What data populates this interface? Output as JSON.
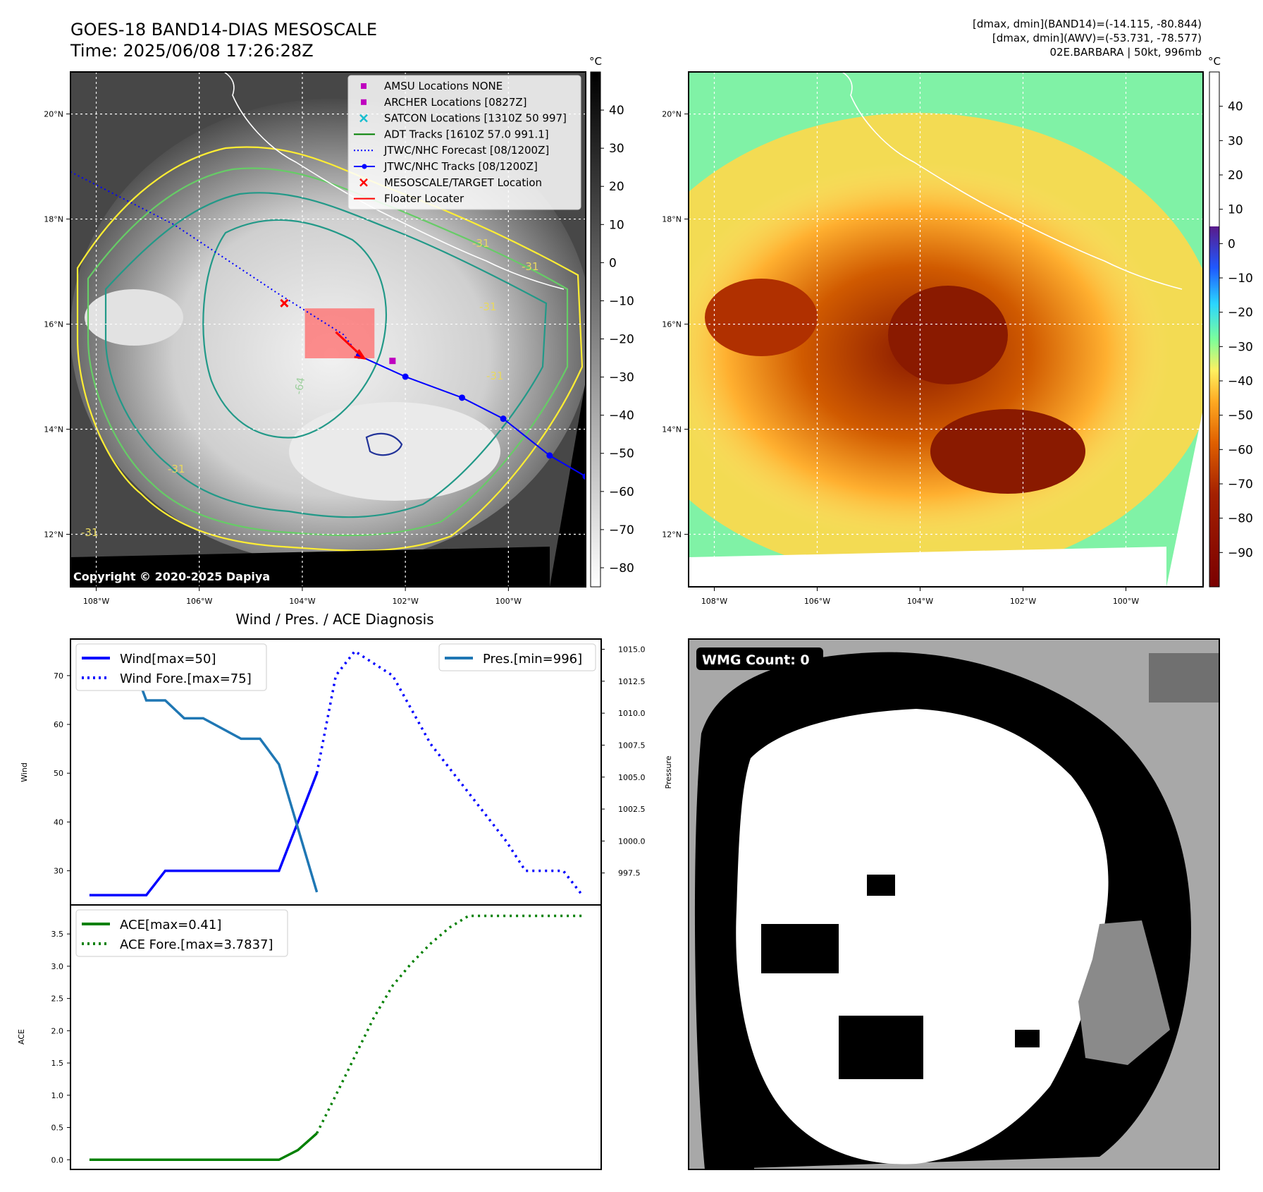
{
  "header": {
    "title_line1": "GOES-18 BAND14-DIAS MESOSCALE",
    "title_line2": "Time: 2025/06/08 17:26:28Z",
    "stats_line1": "[dmax, dmin](BAND14)=(-14.115, -80.844)",
    "stats_line2": "[dmax, dmin](AWV)=(-53.731, -78.577)",
    "stats_line3": "02E.BARBARA | 50kt, 996mb"
  },
  "maps": {
    "lat_labels": [
      "20°N",
      "18°N",
      "16°N",
      "14°N",
      "12°N"
    ],
    "lat_values": [
      20,
      18,
      16,
      14,
      12
    ],
    "lon_labels": [
      "108°W",
      "106°W",
      "104°W",
      "102°W",
      "100°W"
    ],
    "lon_values": [
      -108,
      -106,
      -104,
      -102,
      -100
    ],
    "extent": {
      "lon_min": -108.5,
      "lon_max": -98.5,
      "lat_min": 11.0,
      "lat_max": 20.8
    },
    "copyright": "Copyright © 2020-2025 Dapiya",
    "left_colorbar": {
      "unit": "°C",
      "ticks": [
        "40",
        "30",
        "20",
        "10",
        "0",
        "−10",
        "−20",
        "−30",
        "−40",
        "−50",
        "−60",
        "−70",
        "−80"
      ],
      "values": [
        40,
        30,
        20,
        10,
        0,
        -10,
        -20,
        -30,
        -40,
        -50,
        -60,
        -70,
        -80
      ],
      "range": [
        -85,
        50
      ]
    },
    "right_colorbar": {
      "unit": "°C",
      "ticks": [
        "40",
        "30",
        "20",
        "10",
        "0",
        "−10",
        "−20",
        "−30",
        "−40",
        "−50",
        "−60",
        "−70",
        "−80",
        "−90"
      ],
      "values": [
        40,
        30,
        20,
        10,
        0,
        -10,
        -20,
        -30,
        -40,
        -50,
        -60,
        -70,
        -80,
        -90
      ],
      "range": [
        -100,
        50
      ]
    },
    "contour_labels": [
      "-64",
      "-31",
      "-31",
      "-31",
      "-31",
      "-31",
      "-31"
    ],
    "legend": [
      {
        "label": "AMSU Locations NONE",
        "marker": "square",
        "color": "#bf00bf"
      },
      {
        "label": "ARCHER Locations [0827Z]",
        "marker": "square",
        "color": "#bf00bf"
      },
      {
        "label": "SATCON Locations [1310Z 50 997]",
        "marker": "x",
        "color": "#17becf"
      },
      {
        "label": "ADT Tracks [1610Z 57.0 991.1]",
        "marker": "line",
        "color": "#008000"
      },
      {
        "label": "JTWC/NHC Forecast [08/1200Z]",
        "marker": "dotted",
        "color": "#0000ff"
      },
      {
        "label": "JTWC/NHC Tracks [08/1200Z]",
        "marker": "line-dot",
        "color": "#0000ff"
      },
      {
        "label": "MESOSCALE/TARGET Location",
        "marker": "x",
        "color": "#ff0000"
      },
      {
        "label": "Floater Locater",
        "marker": "line",
        "color": "#ff0000"
      }
    ],
    "track_points": [
      {
        "lon": -102.9,
        "lat": 15.4
      },
      {
        "lon": -102.0,
        "lat": 15.0
      },
      {
        "lon": -100.9,
        "lat": 14.6
      },
      {
        "lon": -100.1,
        "lat": 14.2
      },
      {
        "lon": -99.2,
        "lat": 13.5
      },
      {
        "lon": -98.5,
        "lat": 13.1
      }
    ],
    "forecast_points": [
      {
        "lon": -108.5,
        "lat": 18.9
      },
      {
        "lon": -106.5,
        "lat": 17.9
      },
      {
        "lon": -104.5,
        "lat": 16.6
      },
      {
        "lon": -103.2,
        "lat": 15.8
      },
      {
        "lon": -102.9,
        "lat": 15.4
      }
    ],
    "mesoscale_target": {
      "lon": -104.35,
      "lat": 16.4
    },
    "archer_point": {
      "lon": -102.25,
      "lat": 15.3
    },
    "floater_box": {
      "lon_min": -103.95,
      "lon_max": -102.6,
      "lat_min": 15.35,
      "lat_max": 16.3
    }
  },
  "wmg": {
    "label": "WMG Count: 0"
  },
  "chart_data": [
    {
      "type": "line",
      "title": "Wind / Pres. / ACE Diagnosis",
      "ylabel": "Wind",
      "ylim": [
        23,
        77.5
      ],
      "yticks": [
        "70",
        "60",
        "50",
        "40",
        "30"
      ],
      "ytick_values": [
        70,
        60,
        50,
        40,
        30
      ],
      "y2label": "Pressure",
      "y2lim": [
        995.0,
        1015.8
      ],
      "y2ticks": [
        "1015.0",
        "1012.5",
        "1010.0",
        "1007.5",
        "1005.0",
        "1002.5",
        "1000.0",
        "997.5"
      ],
      "y2tick_values": [
        1015.0,
        1012.5,
        1010.0,
        1007.5,
        1005.0,
        1002.5,
        1000.0,
        997.5
      ],
      "xlim": [
        -1,
        27
      ],
      "series": [
        {
          "name": "Wind[max=50]",
          "style": "solid",
          "color": "#0000ff",
          "axis": "left",
          "x": [
            0,
            1,
            2,
            3,
            4,
            5,
            6,
            7,
            8,
            9,
            10,
            11,
            12
          ],
          "y": [
            25,
            25,
            25,
            25,
            30,
            30,
            30,
            30,
            30,
            30,
            30,
            40,
            50
          ]
        },
        {
          "name": "Wind Fore.[max=75]",
          "style": "dotted",
          "color": "#0000ff",
          "axis": "left",
          "x": [
            12,
            13,
            14,
            15,
            16,
            17,
            18,
            19,
            20,
            21,
            22,
            23,
            24,
            25,
            26
          ],
          "y": [
            50,
            70,
            75,
            72.5,
            70,
            63,
            56,
            51,
            46,
            41,
            36,
            30,
            30,
            30,
            25
          ]
        },
        {
          "name": "Pres.[min=996]",
          "style": "solid",
          "color": "#1f77b4",
          "axis": "right",
          "x": [
            0,
            1,
            2,
            3,
            4,
            5,
            6,
            7,
            8,
            9,
            10,
            11,
            12
          ],
          "y": [
            1015,
            1015,
            1015,
            1011,
            1011,
            1009.6,
            1009.6,
            1008.8,
            1008,
            1008,
            1006,
            1001,
            996
          ]
        }
      ]
    },
    {
      "type": "line",
      "ylabel": "ACE",
      "ylim": [
        -0.15,
        3.95
      ],
      "yticks": [
        "3.5",
        "3.0",
        "2.5",
        "2.0",
        "1.5",
        "1.0",
        "0.5",
        "0.0"
      ],
      "ytick_values": [
        3.5,
        3.0,
        2.5,
        2.0,
        1.5,
        1.0,
        0.5,
        0.0
      ],
      "xlim": [
        -1,
        27
      ],
      "series": [
        {
          "name": "ACE[max=0.41]",
          "style": "solid",
          "color": "#008000",
          "x": [
            0,
            1,
            2,
            3,
            4,
            5,
            6,
            7,
            8,
            9,
            10,
            11,
            12
          ],
          "y": [
            0,
            0,
            0,
            0,
            0,
            0,
            0,
            0,
            0,
            0,
            0,
            0.15,
            0.41
          ]
        },
        {
          "name": "ACE Fore.[max=3.7837]",
          "style": "dotted",
          "color": "#008000",
          "x": [
            12,
            13,
            14,
            15,
            16,
            17,
            18,
            19,
            20,
            21,
            22,
            23,
            24,
            25,
            26
          ],
          "y": [
            0.41,
            1.0,
            1.6,
            2.2,
            2.7,
            3.05,
            3.35,
            3.6,
            3.78,
            3.78,
            3.78,
            3.78,
            3.78,
            3.78,
            3.78
          ]
        }
      ]
    }
  ]
}
